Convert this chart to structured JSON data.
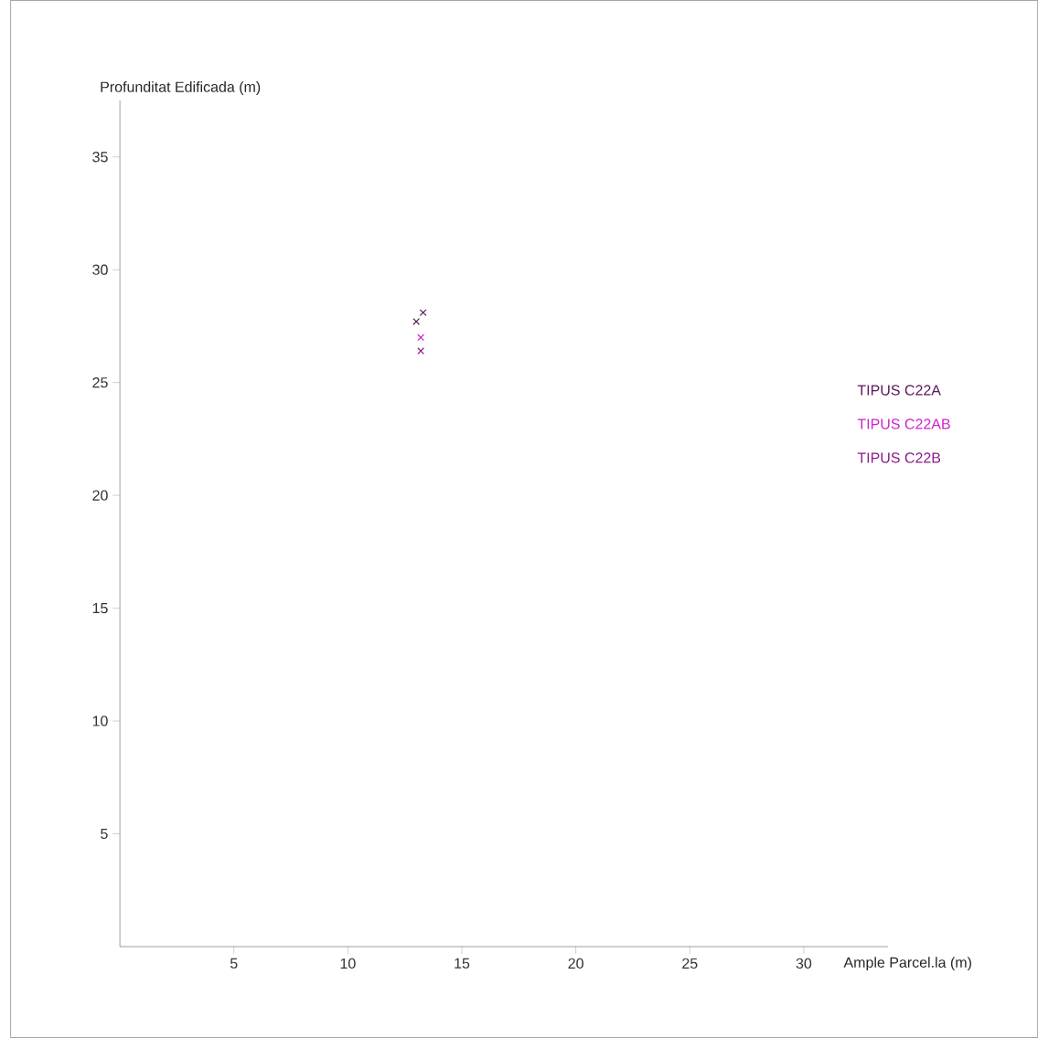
{
  "chart_data": {
    "type": "scatter",
    "xlabel": "Ample Parcel.la (m)",
    "ylabel": "Profunditat Edificada (m)",
    "xlim": [
      0,
      33.7
    ],
    "ylim": [
      0,
      37.5
    ],
    "xticks": [
      5,
      10,
      15,
      20,
      25,
      30
    ],
    "yticks": [
      5,
      10,
      15,
      20,
      25,
      30,
      35
    ],
    "grid": false,
    "legend": "right",
    "marker": "cross",
    "series": [
      {
        "name": "TIPUS C22A",
        "color": "#5a1a5a",
        "x": [
          13.3,
          13.0
        ],
        "values": [
          28.1,
          27.7
        ]
      },
      {
        "name": "TIPUS C22AB",
        "color": "#cc22cc",
        "x": [
          13.2
        ],
        "values": [
          27.0
        ]
      },
      {
        "name": "TIPUS C22B",
        "color": "#8a1a8a",
        "x": [
          13.2
        ],
        "values": [
          26.4
        ]
      }
    ]
  }
}
